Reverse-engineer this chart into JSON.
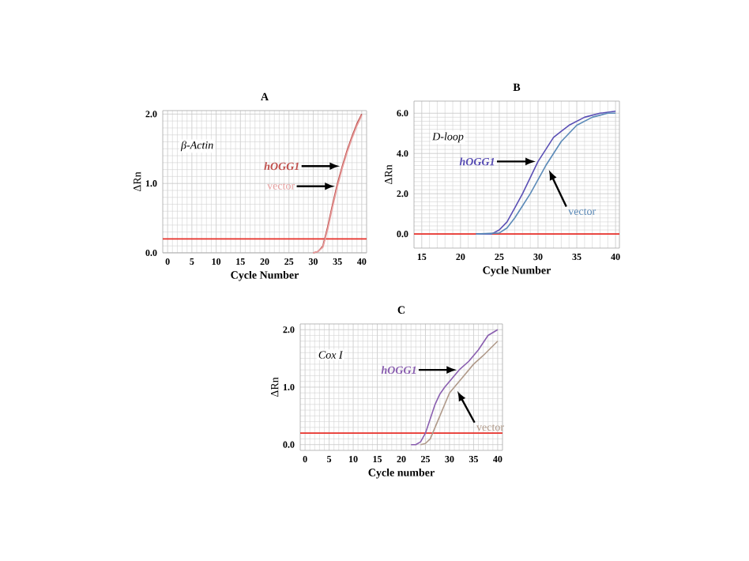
{
  "chart_data": [
    {
      "type": "line",
      "title": "A",
      "xlabel": "Cycle Number",
      "ylabel": "ΔRn",
      "annotations": [
        "β-Actin"
      ],
      "xlim": [
        -1,
        41
      ],
      "ylim": [
        0,
        2.05
      ],
      "xticks": [
        0,
        5,
        10,
        15,
        20,
        25,
        30,
        35,
        40
      ],
      "yticks": [
        {
          "value": 0,
          "label": "0.0"
        },
        {
          "value": 1,
          "label": "1.0"
        },
        {
          "value": 2,
          "label": "2.0"
        }
      ],
      "grid": true,
      "ref_lines": [
        {
          "axis": "y",
          "value": 0.2,
          "color": "#e8302a"
        }
      ],
      "series": [
        {
          "name": "hOGG1",
          "color": "#c0504d",
          "x": [
            30,
            31,
            32,
            33,
            34,
            35,
            36,
            37,
            38,
            39,
            40
          ],
          "values": [
            0,
            0.02,
            0.1,
            0.38,
            0.7,
            1.0,
            1.25,
            1.48,
            1.68,
            1.86,
            2.0
          ]
        },
        {
          "name": "vector",
          "color": "#e8a0a0",
          "x": [
            30,
            31,
            32,
            33,
            34,
            35,
            36,
            37,
            38,
            39,
            40
          ],
          "values": [
            0,
            0.02,
            0.08,
            0.34,
            0.66,
            0.96,
            1.22,
            1.45,
            1.65,
            1.83,
            1.98
          ]
        }
      ]
    },
    {
      "type": "line",
      "title": "B",
      "xlabel": "Cycle Number",
      "ylabel": "ΔRn",
      "annotations": [
        "D-loop"
      ],
      "xlim": [
        14,
        40.5
      ],
      "ylim": [
        -0.7,
        6.6
      ],
      "xticks": [
        15,
        20,
        25,
        30,
        35,
        40
      ],
      "yticks": [
        {
          "value": 0,
          "label": "0.0"
        },
        {
          "value": 2,
          "label": "2.0"
        },
        {
          "value": 4,
          "label": "4.0"
        },
        {
          "value": 6,
          "label": "6.0"
        }
      ],
      "grid": true,
      "ref_lines": [
        {
          "axis": "y",
          "value": 0,
          "color": "#e8302a"
        }
      ],
      "series": [
        {
          "name": "hOGG1",
          "color": "#5a4fb5",
          "x": [
            22,
            24,
            25,
            26,
            27,
            28,
            29,
            30,
            31,
            32,
            33,
            34,
            36,
            38,
            40
          ],
          "values": [
            0,
            0,
            0.2,
            0.6,
            1.3,
            2.0,
            2.8,
            3.6,
            4.2,
            4.8,
            5.1,
            5.4,
            5.8,
            6.0,
            6.1
          ]
        },
        {
          "name": "vector",
          "color": "#5b8ab8",
          "x": [
            22,
            25,
            26,
            27,
            28,
            29,
            30,
            31,
            32,
            33,
            34,
            35,
            37,
            39,
            40
          ],
          "values": [
            0,
            0.05,
            0.3,
            0.8,
            1.4,
            2.0,
            2.7,
            3.4,
            4.0,
            4.6,
            5.0,
            5.4,
            5.8,
            6.0,
            6.0
          ]
        }
      ]
    },
    {
      "type": "line",
      "title": "C",
      "xlabel": "Cycle number",
      "ylabel": "ΔRn",
      "annotations": [
        "Cox I"
      ],
      "xlim": [
        -1,
        41
      ],
      "ylim": [
        -0.1,
        2.1
      ],
      "xticks": [
        0,
        5,
        10,
        15,
        20,
        25,
        30,
        35,
        40
      ],
      "yticks": [
        {
          "value": 0,
          "label": "0.0"
        },
        {
          "value": 1,
          "label": "1.0"
        },
        {
          "value": 2,
          "label": "2.0"
        }
      ],
      "grid": true,
      "ref_lines": [
        {
          "axis": "y",
          "value": 0.2,
          "color": "#e8302a"
        }
      ],
      "series": [
        {
          "name": "hOGG1",
          "color": "#8a5fb0",
          "x": [
            22,
            23,
            24,
            25,
            26,
            27,
            28,
            29,
            30,
            32,
            34,
            36,
            38,
            40
          ],
          "values": [
            0,
            0,
            0.05,
            0.2,
            0.45,
            0.7,
            0.88,
            1.0,
            1.1,
            1.3,
            1.45,
            1.65,
            1.9,
            2.0
          ]
        },
        {
          "name": "vector",
          "color": "#b09a8a",
          "x": [
            24,
            25,
            26,
            27,
            28,
            29,
            30,
            31,
            33,
            35,
            37,
            40
          ],
          "values": [
            0,
            0.02,
            0.1,
            0.3,
            0.5,
            0.7,
            0.9,
            1.0,
            1.2,
            1.4,
            1.55,
            1.8
          ]
        }
      ]
    }
  ]
}
